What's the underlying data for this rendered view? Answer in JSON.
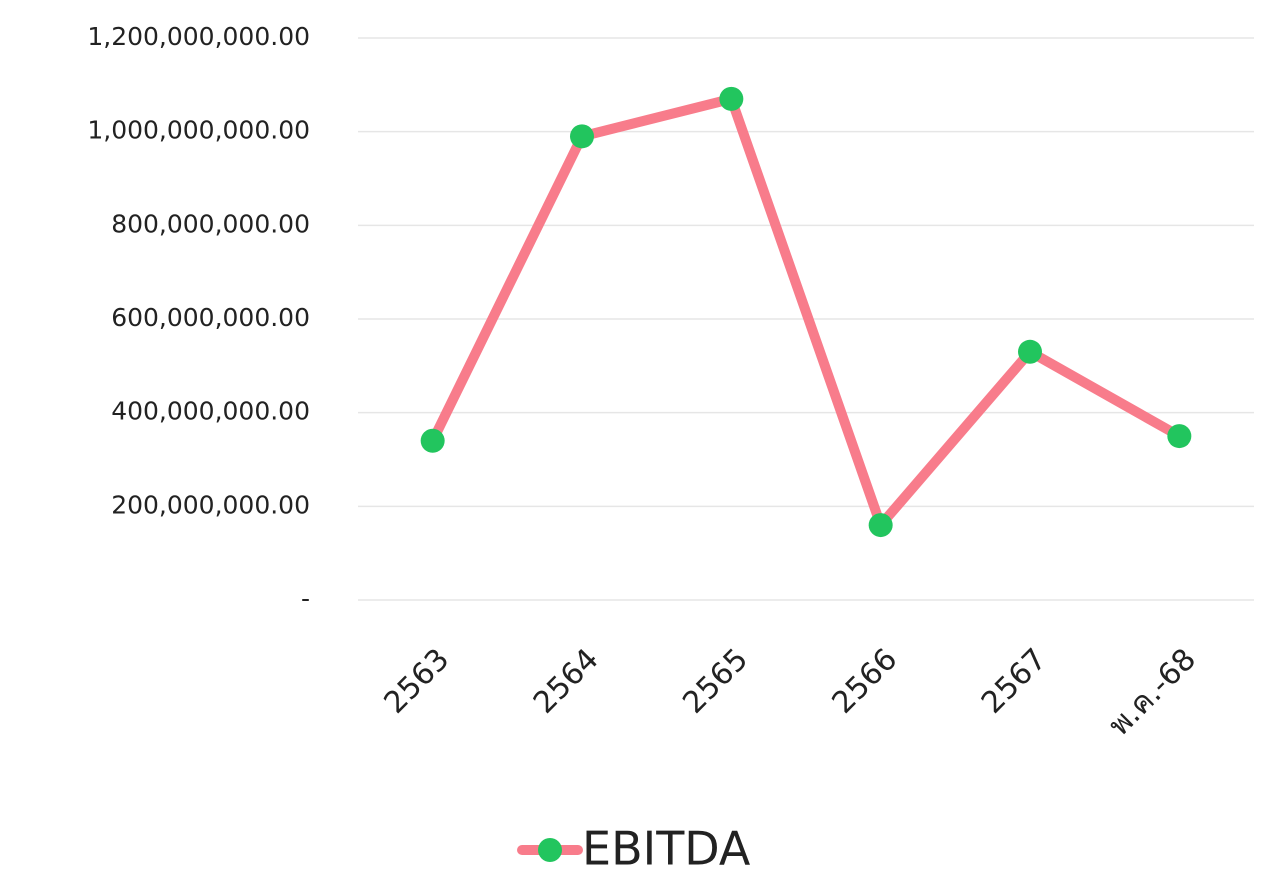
{
  "chart_data": {
    "type": "line",
    "categories": [
      "2563",
      "2564",
      "2565",
      "2566",
      "2567",
      "พ.ค.-68"
    ],
    "series": [
      {
        "name": "EBITDA",
        "color": "#f87c8b",
        "marker_color": "#22c55e",
        "values": [
          340000000,
          990000000,
          1070000000,
          160000000,
          530000000,
          350000000
        ]
      }
    ],
    "ylim": [
      0,
      1200000000
    ],
    "yticks": [
      {
        "value": 0,
        "label": "-"
      },
      {
        "value": 200000000,
        "label": "200,000,000.00"
      },
      {
        "value": 400000000,
        "label": "400,000,000.00"
      },
      {
        "value": 600000000,
        "label": "600,000,000.00"
      },
      {
        "value": 800000000,
        "label": "800,000,000.00"
      },
      {
        "value": 1000000000,
        "label": "1,000,000,000.00"
      },
      {
        "value": 1200000000,
        "label": "1,200,000,000.00"
      }
    ],
    "grid": true,
    "legend": "bottom"
  }
}
